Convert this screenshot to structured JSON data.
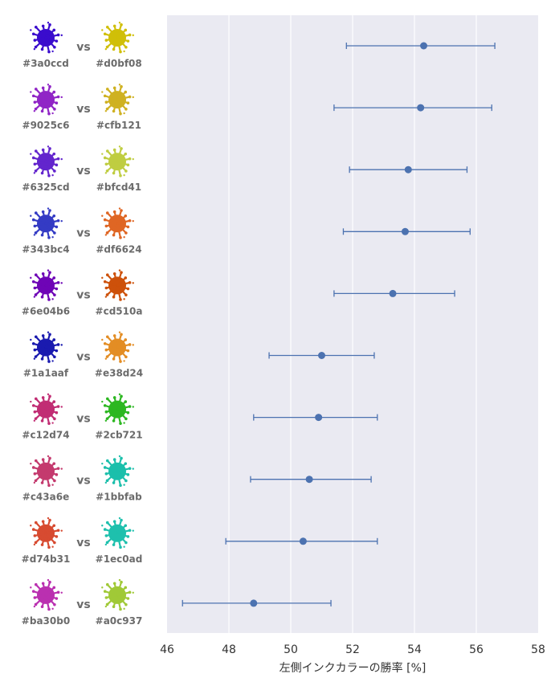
{
  "chart_data": {
    "type": "scatter",
    "subtype": "point-with-error-bars",
    "xlabel": "左側インクカラーの勝率 [%]",
    "xlim": [
      46,
      58
    ],
    "xticks": [
      46,
      48,
      50,
      52,
      54,
      56,
      58
    ],
    "grid": true,
    "marker_color": "#4c72b0",
    "plot_bg": "#eaeaf2",
    "rows": [
      {
        "left": "#3a0ccd",
        "right": "#d0bf08",
        "value": 54.3,
        "lo": 51.8,
        "hi": 56.6
      },
      {
        "left": "#9025c6",
        "right": "#cfb121",
        "value": 54.2,
        "lo": 51.4,
        "hi": 56.5
      },
      {
        "left": "#6325cd",
        "right": "#bfcd41",
        "value": 53.8,
        "lo": 51.9,
        "hi": 55.7
      },
      {
        "left": "#343bc4",
        "right": "#df6624",
        "value": 53.7,
        "lo": 51.7,
        "hi": 55.8
      },
      {
        "left": "#6e04b6",
        "right": "#cd510a",
        "value": 53.3,
        "lo": 51.4,
        "hi": 55.3
      },
      {
        "left": "#1a1aaf",
        "right": "#e38d24",
        "value": 51.0,
        "lo": 49.3,
        "hi": 52.7
      },
      {
        "left": "#c12d74",
        "right": "#2cb721",
        "value": 50.9,
        "lo": 48.8,
        "hi": 52.8
      },
      {
        "left": "#c43a6e",
        "right": "#1bbfab",
        "value": 50.6,
        "lo": 48.7,
        "hi": 52.6
      },
      {
        "left": "#d74b31",
        "right": "#1ec0ad",
        "value": 50.4,
        "lo": 47.9,
        "hi": 52.8
      },
      {
        "left": "#ba30b0",
        "right": "#a0c937",
        "value": 48.8,
        "lo": 46.5,
        "hi": 51.3
      }
    ],
    "vs_label": "vs"
  }
}
